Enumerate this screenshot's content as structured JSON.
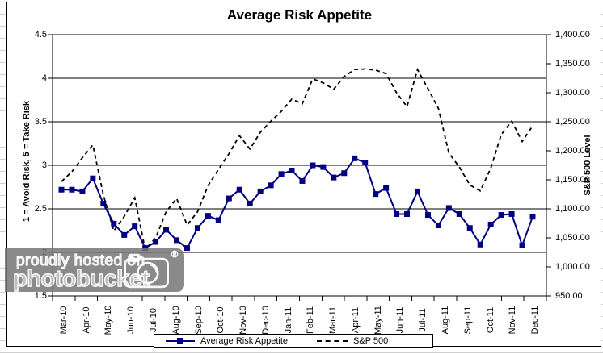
{
  "watermark": {
    "line1": "proudly hosted on",
    "line2": "photobucket",
    "registered": "®",
    "icon": "camera-icon"
  },
  "chart_data": {
    "type": "line",
    "title": "Average Risk Appetite",
    "grid": "horizontal",
    "legend_position": "bottom",
    "points_per_month": 2,
    "left_axis": {
      "title": "1 = Avoid Risk, 5 = Take Risk",
      "min": 1.5,
      "max": 4.5,
      "tick_step": 0.5,
      "tick_labels": [
        "4.5",
        "4",
        "3.5",
        "3",
        "2.5",
        "2",
        "1.5"
      ]
    },
    "right_axis": {
      "title": "S&P 500 Level",
      "min": 950,
      "max": 1400,
      "tick_step": 50,
      "tick_labels": [
        "1,400.00",
        "1,350.00",
        "1,300.00",
        "1,250.00",
        "1,200.00",
        "1,150.00",
        "1,100.00",
        "1,050.00",
        "1,000.00",
        "950.00"
      ]
    },
    "categories": [
      "Mar-10",
      "Apr-10",
      "May-10",
      "Jun-10",
      "Jul-10",
      "Aug-10",
      "Sep-10",
      "Oct-10",
      "Nov-10",
      "Dec-10",
      "Jan-11",
      "Feb-11",
      "Mar-11",
      "Apr-11",
      "May-11",
      "Jun-11",
      "Jul-11",
      "Aug-11",
      "Sep-11",
      "Oct-11",
      "Nov-11",
      "Dec-11"
    ],
    "series": [
      {
        "name": "Average Risk Appetite",
        "axis": "left",
        "color": "#000080",
        "marker": "square",
        "line_style": "solid",
        "values": [
          2.72,
          2.72,
          2.7,
          2.85,
          2.56,
          2.33,
          2.2,
          2.3,
          2.05,
          2.12,
          2.26,
          2.14,
          2.05,
          2.28,
          2.42,
          2.37,
          2.62,
          2.72,
          2.56,
          2.7,
          2.77,
          2.9,
          2.94,
          2.82,
          3.0,
          2.98,
          2.86,
          2.91,
          3.08,
          3.03,
          2.67,
          2.74,
          2.44,
          2.44,
          2.7,
          2.43,
          2.31,
          2.51,
          2.44,
          2.28,
          2.09,
          2.32,
          2.43,
          2.44,
          2.08,
          2.41
        ]
      },
      {
        "name": "S&P 500",
        "axis": "right",
        "color": "#000000",
        "marker": "none",
        "line_style": "dashed",
        "values": [
          1147,
          1164,
          1188,
          1210,
          1124,
          1062,
          1087,
          1119,
          1030,
          1050,
          1095,
          1118,
          1072,
          1095,
          1140,
          1168,
          1195,
          1226,
          1203,
          1232,
          1251,
          1268,
          1289,
          1281,
          1324,
          1317,
          1306,
          1328,
          1340,
          1341,
          1339,
          1333,
          1300,
          1276,
          1340,
          1307,
          1273,
          1196,
          1172,
          1141,
          1131,
          1170,
          1228,
          1251,
          1216,
          1243
        ]
      }
    ]
  }
}
